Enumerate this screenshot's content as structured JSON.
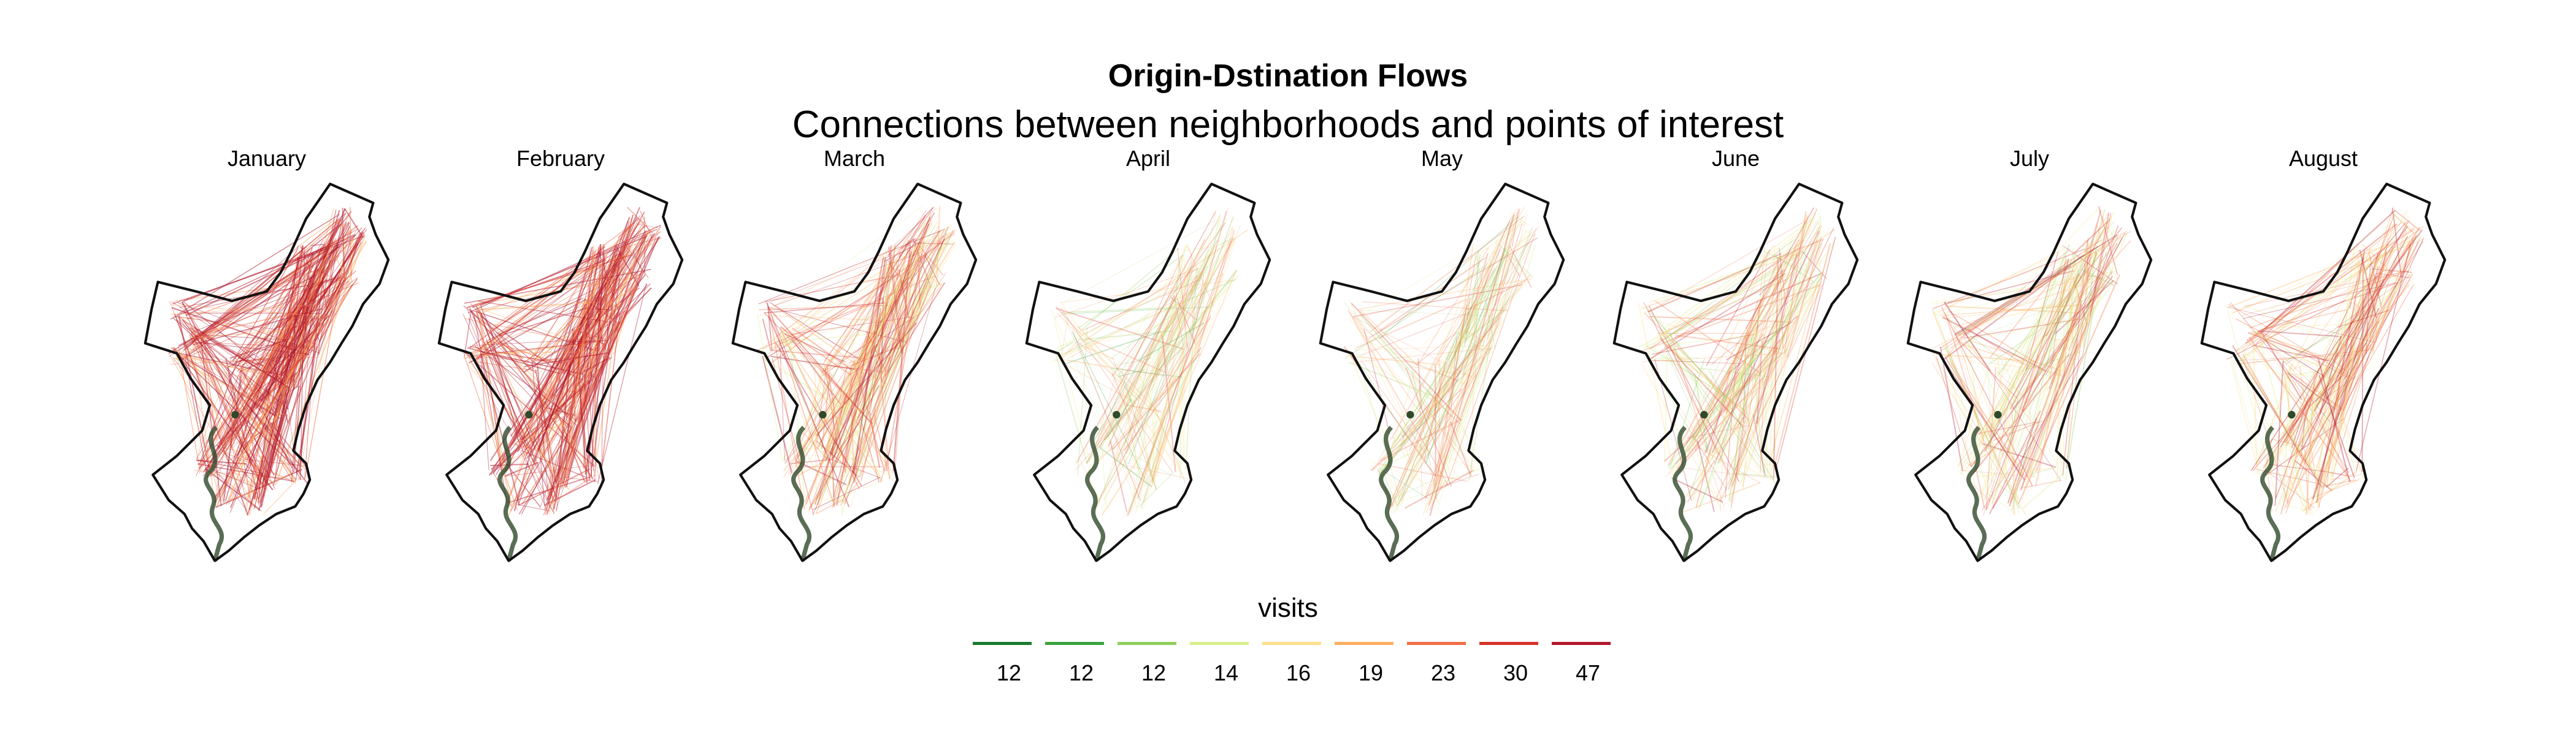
{
  "title": "Origin-Dstination Flows",
  "subtitle": "Connections between neighborhoods and points of interest",
  "panels": [
    {
      "month": "January",
      "intensity": 0.95
    },
    {
      "month": "February",
      "intensity": 0.92
    },
    {
      "month": "March",
      "intensity": 0.62
    },
    {
      "month": "April",
      "intensity": 0.3
    },
    {
      "month": "May",
      "intensity": 0.33
    },
    {
      "month": "June",
      "intensity": 0.4
    },
    {
      "month": "July",
      "intensity": 0.45
    },
    {
      "month": "August",
      "intensity": 0.55
    }
  ],
  "legend": {
    "title": "visits",
    "keys": [
      {
        "label": "12",
        "color": "#1a7a2e"
      },
      {
        "label": "12",
        "color": "#3aa33f"
      },
      {
        "label": "12",
        "color": "#8fcf5a"
      },
      {
        "label": "14",
        "color": "#d9ef8b"
      },
      {
        "label": "16",
        "color": "#fee08b"
      },
      {
        "label": "19",
        "color": "#fdae61"
      },
      {
        "label": "23",
        "color": "#f46d43"
      },
      {
        "label": "30",
        "color": "#d73027"
      },
      {
        "label": "47",
        "color": "#b2182b"
      }
    ]
  }
}
